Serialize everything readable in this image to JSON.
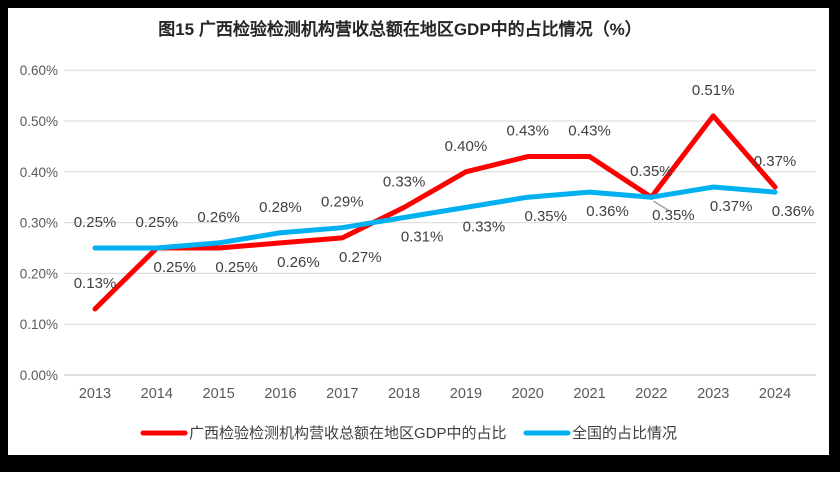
{
  "chart_data": {
    "type": "line",
    "title": "图15 广西检验检测机构营收总额在地区GDP中的占比情况（%）",
    "categories": [
      "2013",
      "2014",
      "2015",
      "2016",
      "2017",
      "2018",
      "2019",
      "2020",
      "2021",
      "2022",
      "2023",
      "2024"
    ],
    "series": [
      {
        "name": "广西检验检测机构营收总额在地区GDP中的占比",
        "color": "#fe0000",
        "values": [
          0.13,
          0.25,
          0.25,
          0.26,
          0.27,
          0.33,
          0.4,
          0.43,
          0.43,
          0.35,
          0.51,
          0.37
        ],
        "labels": [
          "0.13%",
          "0.25%",
          "0.25%",
          "0.26%",
          "0.27%",
          "0.33%",
          "0.40%",
          "0.43%",
          "0.43%",
          "0.35%",
          "0.51%",
          "0.37%"
        ],
        "label_positions": [
          "above",
          "below",
          "below",
          "below",
          "below",
          "above",
          "above",
          "above",
          "above",
          "above",
          "above",
          "above"
        ]
      },
      {
        "name": "全国的占比情况",
        "color": "#00b0f0",
        "values": [
          0.25,
          0.25,
          0.26,
          0.28,
          0.29,
          0.31,
          0.33,
          0.35,
          0.36,
          0.35,
          0.37,
          0.36
        ],
        "labels": [
          "0.25%",
          "0.25%",
          "0.26%",
          "0.28%",
          "0.29%",
          "0.31%",
          "0.33%",
          "0.35%",
          "0.36%",
          "0.35%",
          "0.37%",
          "0.36%"
        ],
        "label_positions": [
          "above",
          "above",
          "above",
          "above",
          "above",
          "below",
          "below",
          "below",
          "below",
          "below-leader",
          "below",
          "below"
        ]
      }
    ],
    "y_ticks": [
      "0.00%",
      "0.10%",
      "0.20%",
      "0.30%",
      "0.40%",
      "0.50%",
      "0.60%"
    ],
    "ylim": [
      0,
      0.6
    ],
    "grid": true,
    "legend_position": "bottom",
    "colors": {
      "gridline": "#d9d9d9",
      "baseline": "#bfbfbf",
      "axis_text": "#595959",
      "label_text": "#404040",
      "title_text": "#262626",
      "leader_line": "#a6a6a6",
      "frame": "#000000",
      "background": "#ffffff"
    }
  }
}
